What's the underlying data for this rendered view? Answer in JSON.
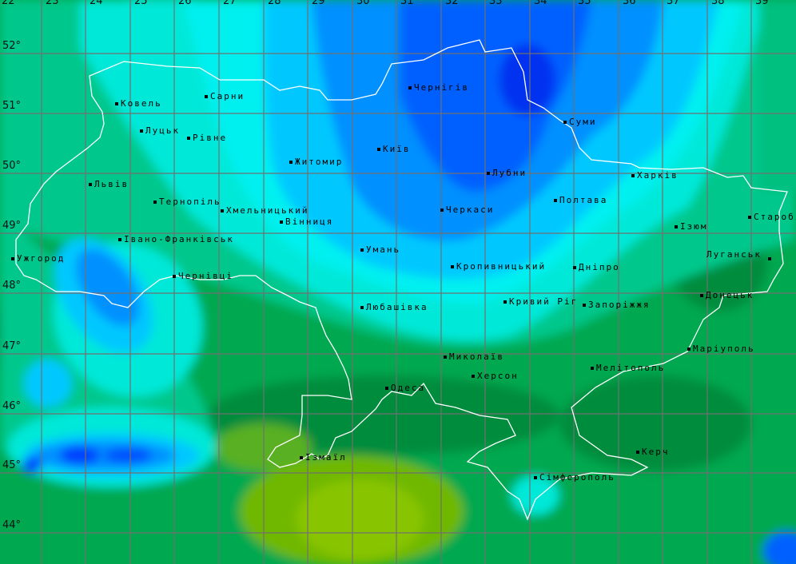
{
  "map": {
    "longitude_labels": [
      "22",
      "23",
      "24",
      "25",
      "26",
      "27",
      "28",
      "29",
      "30",
      "31",
      "32",
      "33",
      "34",
      "35",
      "36",
      "37",
      "38",
      "39"
    ],
    "latitude_labels": [
      "52°",
      "51°",
      "50°",
      "49°",
      "48°",
      "47°",
      "46°",
      "45°",
      "44°"
    ],
    "colors": {
      "dark_green": "#008c3c",
      "green": "#00a850",
      "teal": "#00c88c",
      "aqua": "#00e8d8",
      "cyan": "#00f0f0",
      "sky": "#00c8ff",
      "blue": "#0090ff",
      "deep_blue": "#0060ff",
      "deepest_blue": "#0030f0",
      "yellow_green": "#80c000",
      "border": "#ffffff",
      "grid": "#707070"
    },
    "cities": [
      "Ковель",
      "Сарни",
      "Луцьк",
      "Рівне",
      "Чернігів",
      "Суми",
      "Київ",
      "Житомир",
      "Львів",
      "Лубни",
      "Харків",
      "Тернопіль",
      "Хмельницький",
      "Черкаси",
      "Полтава",
      "Вінниця",
      "Ізюм",
      "Старобі",
      "Івано-Франківськ",
      "Ужгород",
      "Умань",
      "Кропивницький",
      "Дніпро",
      "Луганськ",
      "Чернівці",
      "Донецьк",
      "Кривий Ріг",
      "Запоріжжя",
      "Любашівка",
      "Маріуполь",
      "Миколаїв",
      "Мелітополь",
      "Херсон",
      "Одеса",
      "Ізмаїл",
      "Керч",
      "Сімферополь"
    ]
  }
}
